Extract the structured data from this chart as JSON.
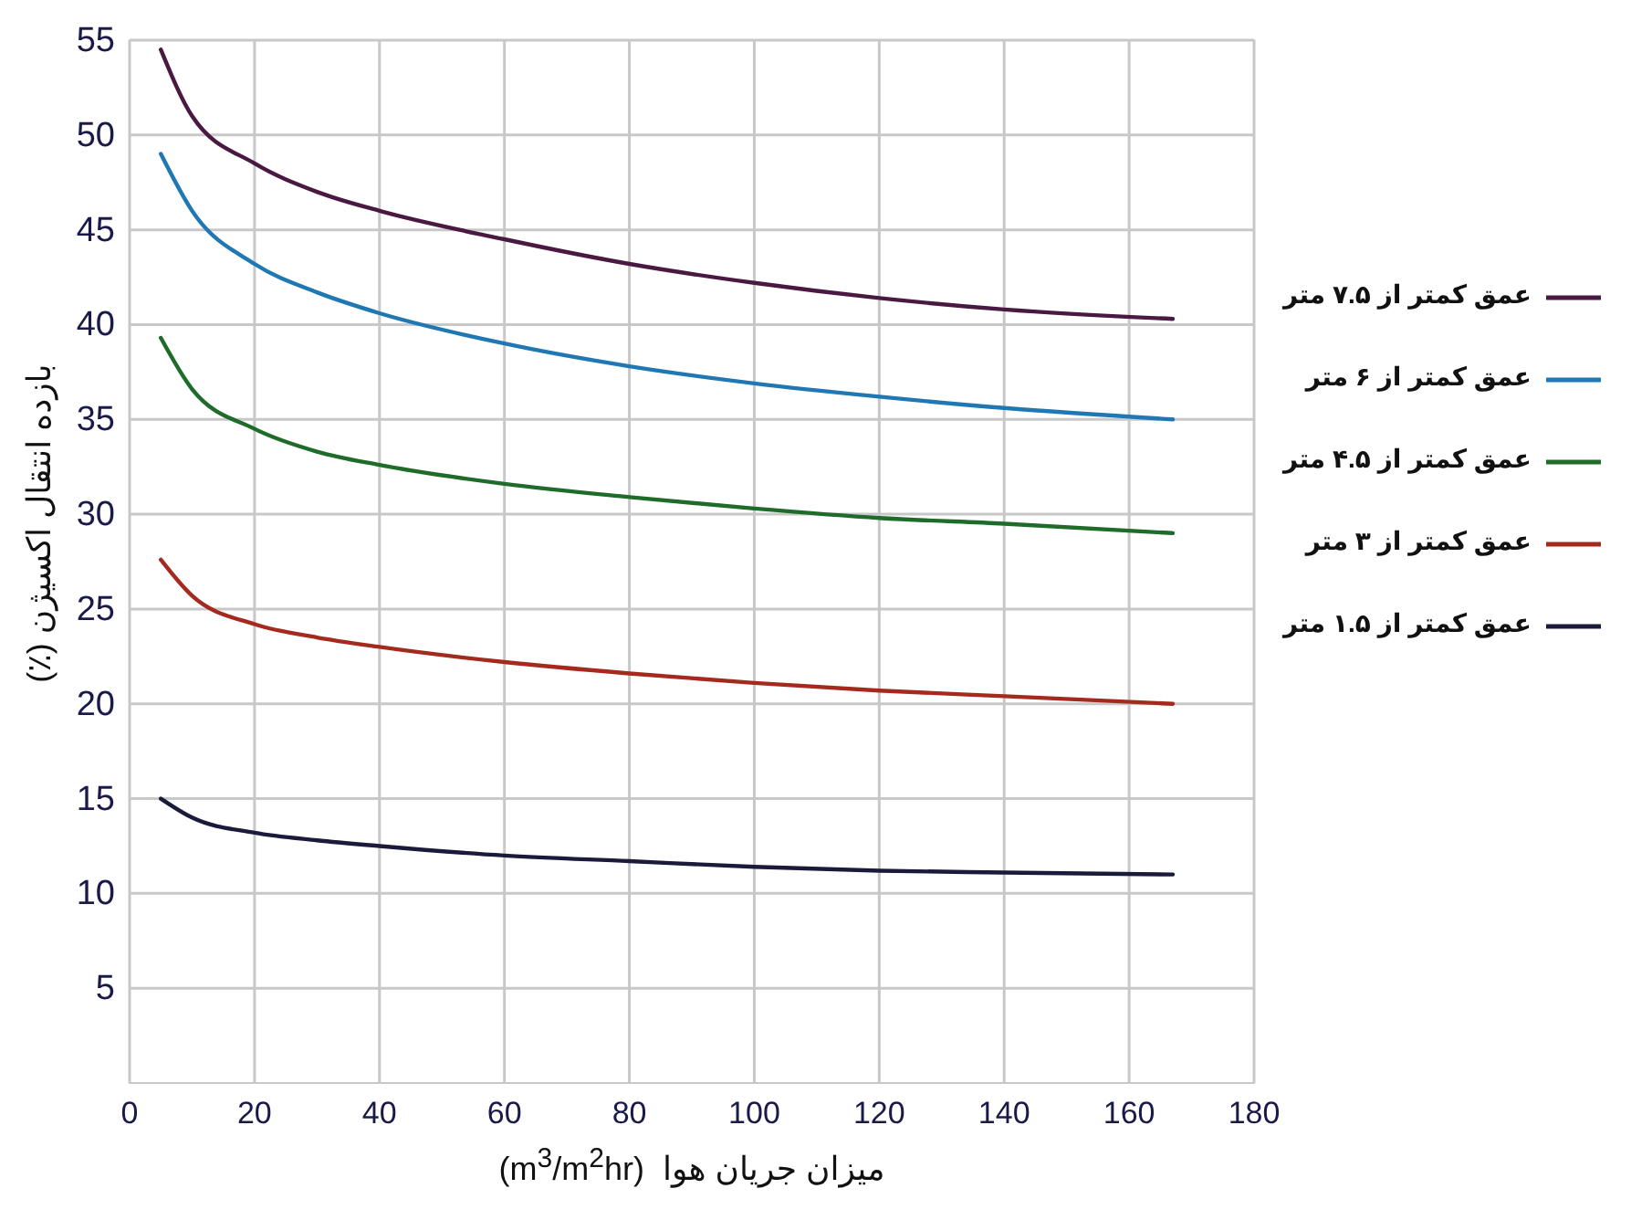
{
  "chart_data": {
    "type": "line",
    "xlabel": "میزان جریان هوا  (m$^{3}$/m$^{2}$hr)",
    "ylabel": "بازده انتقال اکسیژن (٪)",
    "x": [
      5,
      10,
      20,
      30,
      40,
      60,
      80,
      100,
      120,
      140,
      167
    ],
    "series": [
      {
        "name": "عمق کمتر از ۷.۵ متر",
        "color": "#4a1942",
        "values": [
          54.5,
          51,
          48.5,
          47,
          46,
          44.5,
          43.2,
          42.2,
          41.4,
          40.8,
          40.3
        ]
      },
      {
        "name": "عمق کمتر از ۶ متر",
        "color": "#1f78b4",
        "values": [
          49,
          46,
          43.2,
          41.7,
          40.6,
          39,
          37.8,
          36.9,
          36.2,
          35.6,
          35.0
        ]
      },
      {
        "name": "عمق کمتر از ۴.۵ متر",
        "color": "#1e6b2a",
        "values": [
          39.3,
          36.6,
          34.5,
          33.3,
          32.6,
          31.6,
          30.9,
          30.3,
          29.8,
          29.5,
          29.0
        ]
      },
      {
        "name": "عمق کمتر از ۳ متر",
        "color": "#a52a1e",
        "values": [
          27.6,
          25.7,
          24.2,
          23.5,
          23,
          22.2,
          21.6,
          21.1,
          20.7,
          20.4,
          20.0
        ]
      },
      {
        "name": "عمق کمتر از ۱.۵ متر",
        "color": "#1a1a3a",
        "values": [
          15,
          14,
          13.2,
          12.8,
          12.5,
          12.0,
          11.7,
          11.4,
          11.2,
          11.1,
          11.0
        ]
      }
    ],
    "xlim": [
      0,
      180
    ],
    "xticks": [
      0,
      20,
      40,
      60,
      80,
      100,
      120,
      140,
      160,
      180
    ],
    "ylim": [
      0,
      55
    ],
    "yticks": [
      5,
      10,
      15,
      20,
      25,
      30,
      35,
      40,
      45,
      50,
      55
    ],
    "grid": true,
    "legend": "right",
    "marker": "none",
    "line_style": "solid"
  }
}
